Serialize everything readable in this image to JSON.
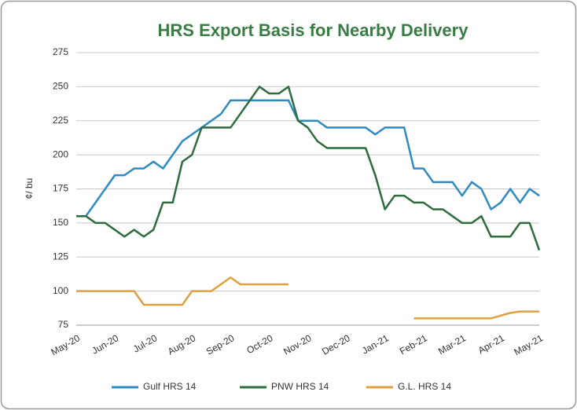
{
  "chart_data": {
    "type": "line",
    "title": "HRS Export Basis for Nearby Delivery",
    "y_label": "¢/ bu",
    "categories": [
      "May-20",
      null,
      null,
      null,
      "Jun-20",
      null,
      null,
      null,
      "Jul-20",
      null,
      null,
      null,
      "Aug-20",
      null,
      null,
      null,
      "Sep-20",
      null,
      null,
      null,
      "Oct-20",
      null,
      null,
      null,
      "Nov-20",
      null,
      null,
      null,
      "Dec-20",
      null,
      null,
      null,
      "Jan-21",
      null,
      null,
      null,
      "Feb-21",
      null,
      null,
      null,
      "Mar-21",
      null,
      null,
      null,
      "Apr-21",
      null,
      null,
      null,
      "May-21"
    ],
    "series": [
      {
        "name": "Gulf HRS 14",
        "color": "#2e8bc0",
        "values": [
          155,
          155,
          165,
          175,
          185,
          185,
          190,
          190,
          195,
          190,
          200,
          210,
          215,
          220,
          225,
          230,
          240,
          240,
          240,
          240,
          240,
          240,
          240,
          225,
          225,
          225,
          220,
          220,
          220,
          220,
          220,
          215,
          220,
          220,
          220,
          190,
          190,
          180,
          180,
          180,
          170,
          180,
          175,
          160,
          165,
          175,
          165,
          175,
          170
        ]
      },
      {
        "name": "PNW HRS 14",
        "color": "#2e6b3e",
        "values": [
          155,
          155,
          150,
          150,
          145,
          140,
          145,
          140,
          145,
          165,
          165,
          195,
          200,
          220,
          220,
          220,
          220,
          230,
          240,
          250,
          245,
          245,
          250,
          225,
          220,
          210,
          205,
          205,
          205,
          205,
          205,
          185,
          160,
          170,
          170,
          165,
          165,
          160,
          160,
          155,
          150,
          150,
          155,
          140,
          140,
          140,
          150,
          150,
          130
        ]
      },
      {
        "name": "G.L. HRS 14",
        "color": "#e0a040",
        "values": [
          100,
          100,
          100,
          100,
          100,
          100,
          100,
          90,
          90,
          90,
          90,
          90,
          100,
          100,
          100,
          105,
          110,
          105,
          105,
          105,
          105,
          105,
          105,
          null,
          null,
          null,
          null,
          null,
          null,
          null,
          null,
          null,
          null,
          null,
          null,
          80,
          80,
          80,
          80,
          80,
          80,
          80,
          80,
          80,
          82,
          84,
          85,
          85,
          85
        ]
      }
    ],
    "ylim": [
      75,
      275
    ],
    "yticks": [
      75,
      100,
      125,
      150,
      175,
      200,
      225,
      250,
      275
    ],
    "grid": true,
    "legend": "bottom"
  }
}
